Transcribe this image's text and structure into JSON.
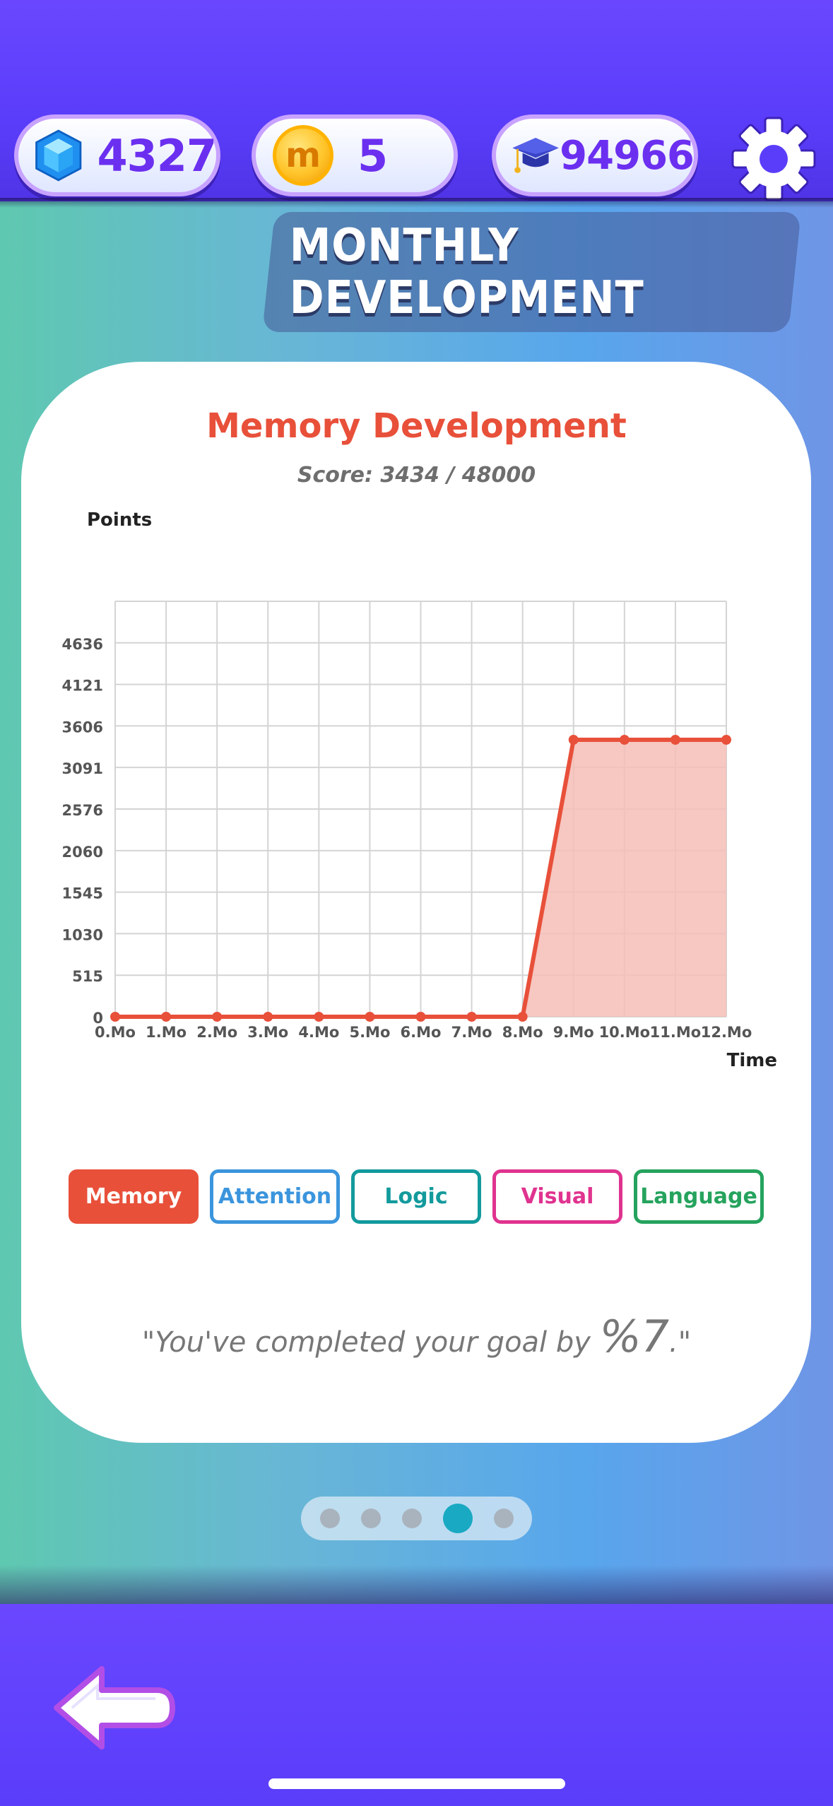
{
  "header": {
    "gems": "4327",
    "coins": "5",
    "coin_symbol": "m",
    "graduation_points": "94966",
    "icons": [
      "gem-icon",
      "coin-icon",
      "graduation-cap-icon",
      "gear-icon"
    ]
  },
  "page_title": "MONTHLY DEVELOPMENT",
  "chart": {
    "title": "Memory Development",
    "subtitle": "Score: 3434 / 48000"
  },
  "chart_data": {
    "type": "area",
    "title": "Memory Development",
    "subtitle": "Score: 3434 / 48000",
    "xlabel": "Time",
    "ylabel": "Points",
    "categories": [
      "0.Mo",
      "1.Mo",
      "2.Mo",
      "3.Mo",
      "4.Mo",
      "5.Mo",
      "6.Mo",
      "7.Mo",
      "8.Mo",
      "9.Mo",
      "10.Mo",
      "11.Mo",
      "12.Mo"
    ],
    "values": [
      0,
      0,
      0,
      0,
      0,
      0,
      0,
      0,
      0,
      3434,
      3434,
      3434,
      3434
    ],
    "yticks": [
      0,
      515,
      1030,
      1545,
      2060,
      2576,
      3091,
      3606,
      4121,
      4636
    ],
    "ylim": [
      0,
      5151
    ],
    "grid": true,
    "series_color": "#e8503a",
    "fill_color": "#f6bdb6"
  },
  "categories": [
    {
      "label": "Memory",
      "color": "#e8503a",
      "selected": true
    },
    {
      "label": "Attention",
      "color": "#3b95dd",
      "selected": false
    },
    {
      "label": "Logic",
      "color": "#139a9c",
      "selected": false
    },
    {
      "label": "Visual",
      "color": "#e0338f",
      "selected": false
    },
    {
      "label": "Language",
      "color": "#25a35d",
      "selected": false
    }
  ],
  "quote": {
    "prefix": "\"You've completed your goal by ",
    "percent": "%7",
    "suffix": ".\""
  },
  "pager": {
    "count": 5,
    "active_index": 3
  },
  "nav": {
    "back_icon": "back-arrow-icon"
  }
}
